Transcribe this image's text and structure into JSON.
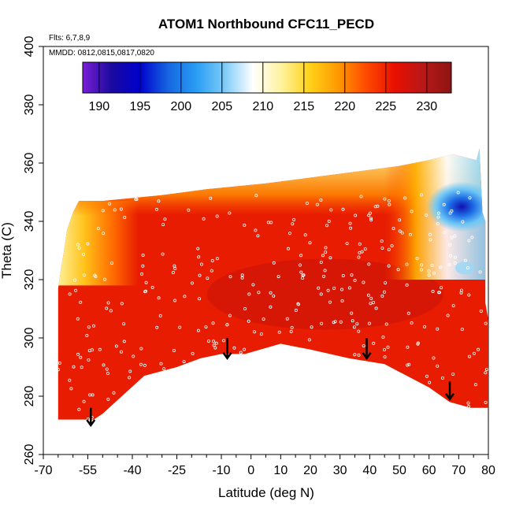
{
  "chart_data": {
    "type": "heatmap",
    "title": "ATOM1 Northbound CFC11_PECD",
    "subtitle_flights": "Flts: 6,7,8,9",
    "subtitle_dates": "MMDD: 0812,0815,0817,0820",
    "xlabel": "Latitude (deg N)",
    "ylabel": "Theta (C)",
    "xlim": [
      -70,
      80
    ],
    "ylim": [
      260,
      400
    ],
    "x_ticks": [
      -70,
      -55,
      -40,
      -25,
      -10,
      0,
      10,
      20,
      30,
      40,
      50,
      60,
      70,
      80
    ],
    "y_ticks": [
      260,
      280,
      300,
      320,
      340,
      360,
      380,
      400
    ],
    "colorbar": {
      "range": [
        188,
        233
      ],
      "ticks": [
        190,
        195,
        200,
        205,
        210,
        215,
        220,
        225,
        230
      ],
      "colors": [
        "#7a1fd6",
        "#1b0a9e",
        "#0000cc",
        "#1565e0",
        "#2a9df4",
        "#7dcbf8",
        "#ffffff",
        "#fff3a0",
        "#ffd21a",
        "#ff9a00",
        "#ff4a00",
        "#e81000",
        "#b81818",
        "#8e1414"
      ]
    },
    "domain_outline": [
      [
        -65,
        272
      ],
      [
        -53,
        272
      ],
      [
        -50,
        274
      ],
      [
        -36,
        287
      ],
      [
        -25,
        290
      ],
      [
        -17,
        293
      ],
      [
        -10,
        294.5
      ],
      [
        -2,
        294.5
      ],
      [
        10,
        298
      ],
      [
        20,
        296
      ],
      [
        33,
        293
      ],
      [
        45,
        291
      ],
      [
        60,
        283
      ],
      [
        67,
        278
      ],
      [
        74,
        276
      ],
      [
        80,
        276
      ],
      [
        80,
        306
      ],
      [
        79,
        312
      ],
      [
        79,
        340
      ],
      [
        78,
        343
      ],
      [
        77,
        365
      ],
      [
        76,
        361
      ],
      [
        68,
        363
      ],
      [
        60,
        361
      ],
      [
        50,
        359
      ],
      [
        35,
        357
      ],
      [
        20,
        355
      ],
      [
        5,
        353
      ],
      [
        -15,
        351
      ],
      [
        -30,
        349
      ],
      [
        -50,
        347
      ],
      [
        -58,
        347
      ],
      [
        -60,
        343
      ],
      [
        -62,
        337
      ],
      [
        -63,
        330
      ],
      [
        -64,
        324
      ],
      [
        -65,
        317
      ],
      [
        -65,
        308
      ],
      [
        -65,
        300
      ]
    ],
    "arrows_lat": [
      -54,
      -8,
      39,
      67
    ],
    "arrows_theta": [
      [
        276,
        270
      ],
      [
        300,
        293
      ],
      [
        300,
        293
      ],
      [
        285,
        279
      ]
    ]
  }
}
